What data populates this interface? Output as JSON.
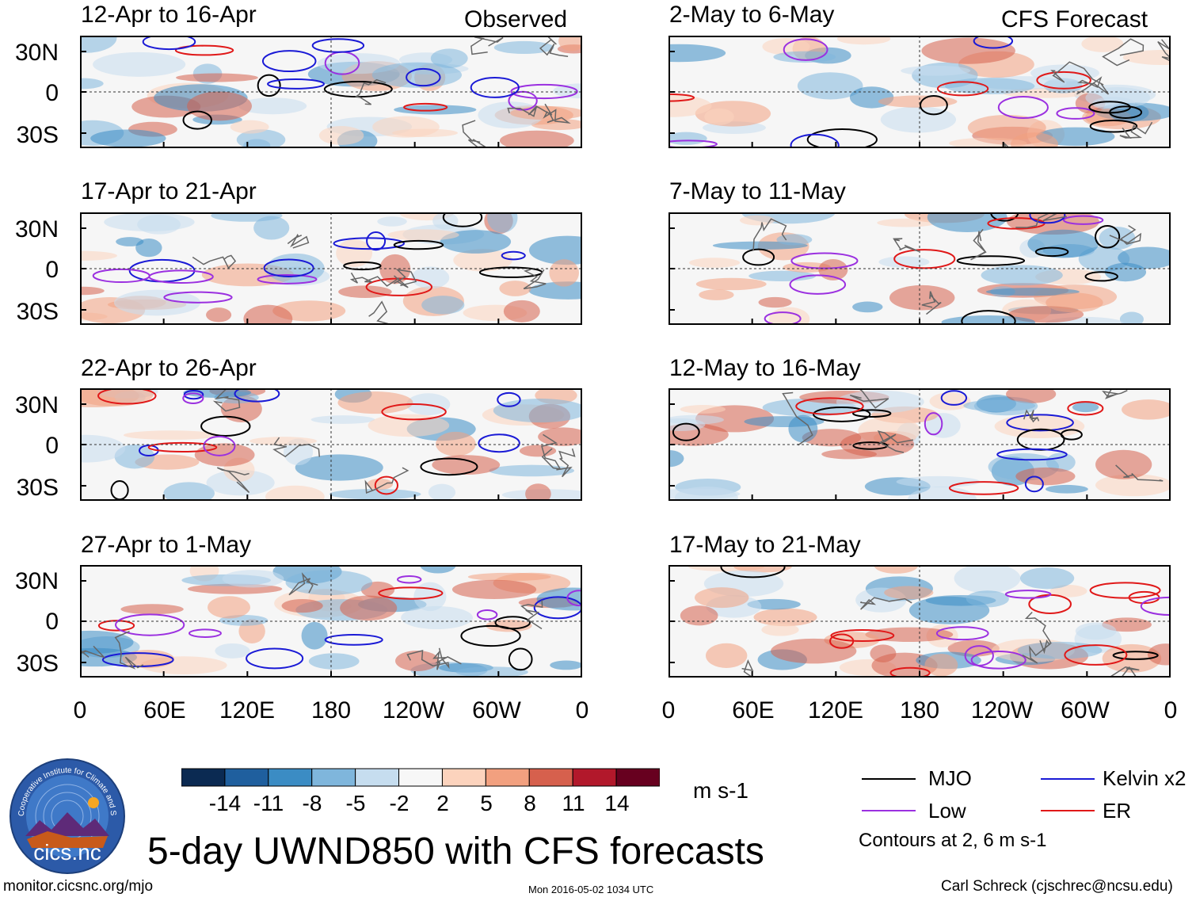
{
  "panels_observed_tag": "Observed",
  "panels_forecast_tag": "CFS Forecast",
  "left_titles": [
    "12-Apr to 16-Apr",
    "17-Apr to 21-Apr",
    "22-Apr to 26-Apr",
    "27-Apr to 1-May"
  ],
  "right_titles": [
    "2-May to 6-May",
    "7-May to 11-May",
    "12-May to 16-May",
    "17-May to 21-May"
  ],
  "lat_labels": [
    "30N",
    "0",
    "30S"
  ],
  "lon_labels": [
    "0",
    "60E",
    "120E",
    "180",
    "120W",
    "60W",
    "0"
  ],
  "colorbar": {
    "colors": [
      "#0b2a52",
      "#1f5f9e",
      "#3b8cc4",
      "#7fb6dc",
      "#c6ddef",
      "#f7f7f7",
      "#fcd3bd",
      "#f2a07f",
      "#d6604d",
      "#b2182b",
      "#67001f"
    ],
    "labels": [
      "-14",
      "-11",
      "-8",
      "-5",
      "-2",
      "2",
      "5",
      "8",
      "11",
      "14"
    ],
    "units": "m s-1"
  },
  "legend": {
    "mjo": {
      "label": "MJO",
      "color": "#000000"
    },
    "kelvin": {
      "label": "Kelvin x2",
      "color": "#1a1ad6"
    },
    "low": {
      "label": "Low",
      "color": "#9b30e0"
    },
    "er": {
      "label": "ER",
      "color": "#e01818"
    },
    "contours_note": "Contours at 2, 6 m s-1"
  },
  "main_title": "5-day UWND850 with CFS forecasts",
  "footer": {
    "url": "monitor.cicsnc.org/mjo",
    "timestamp": "Mon 2016-05-02 1034 UTC",
    "author": "Carl Schreck (cjschrec@ncsu.edu)"
  },
  "logo": {
    "text": "cics.nc",
    "ring_text": "Cooperative Institute for Climate and Satellites"
  }
}
